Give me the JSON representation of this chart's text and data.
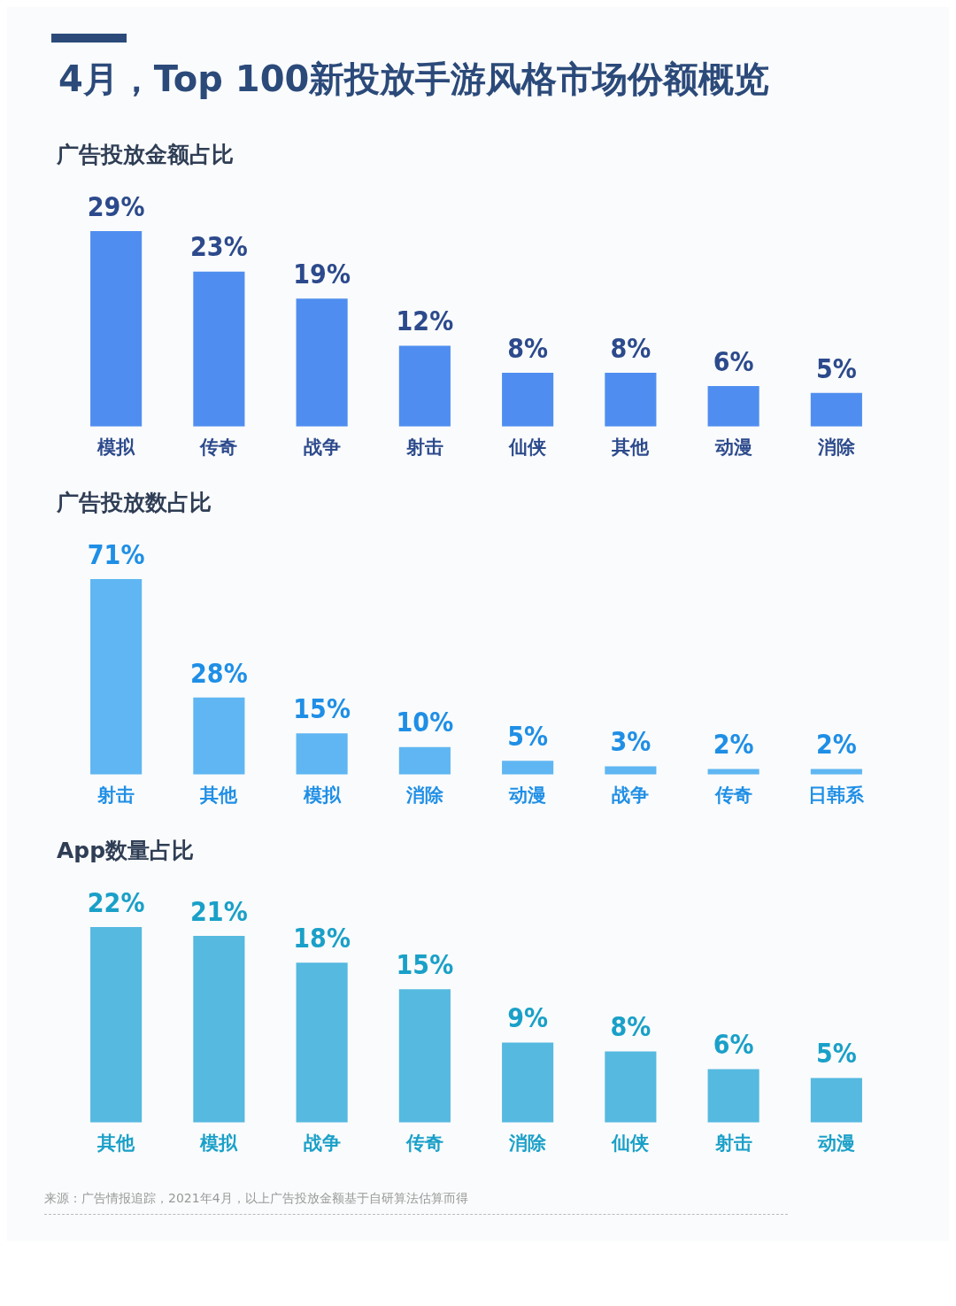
{
  "chart_data": [
    {
      "type": "bar",
      "title": "4月，Top 100新投放手游风格市场份额概览",
      "subtitle": "广告投放金额占比",
      "categories": [
        "模拟",
        "传奇",
        "战争",
        "射击",
        "仙侠",
        "其他",
        "动漫",
        "消除"
      ],
      "values": [
        29,
        23,
        19,
        12,
        8,
        8,
        6,
        5
      ],
      "value_labels": [
        "29%",
        "23%",
        "19%",
        "12%",
        "8%",
        "8%",
        "6%",
        "5%"
      ],
      "color": "#4f8ef0",
      "grid": false,
      "legend": false
    },
    {
      "type": "bar",
      "subtitle": "广告投放数占比",
      "categories": [
        "射击",
        "其他",
        "模拟",
        "消除",
        "动漫",
        "战争",
        "传奇",
        "日韩系"
      ],
      "values": [
        71,
        28,
        15,
        10,
        5,
        3,
        2,
        2
      ],
      "value_labels": [
        "71%",
        "28%",
        "15%",
        "10%",
        "5%",
        "3%",
        "2%",
        "2%"
      ],
      "color": "#5fb6f2",
      "grid": false,
      "legend": false
    },
    {
      "type": "bar",
      "subtitle": "App数量占比",
      "categories": [
        "其他",
        "模拟",
        "战争",
        "传奇",
        "消除",
        "仙侠",
        "射击",
        "动漫"
      ],
      "values": [
        22,
        21,
        18,
        15,
        9,
        8,
        6,
        5
      ],
      "value_labels": [
        "22%",
        "21%",
        "18%",
        "15%",
        "9%",
        "8%",
        "6%",
        "5%"
      ],
      "color": "#55b9e0",
      "grid": false,
      "legend": false,
      "annotations": [
        "来源：广告情报追踪，2021年4月，以上广告投放金额基于自研算法估算而得"
      ]
    }
  ]
}
